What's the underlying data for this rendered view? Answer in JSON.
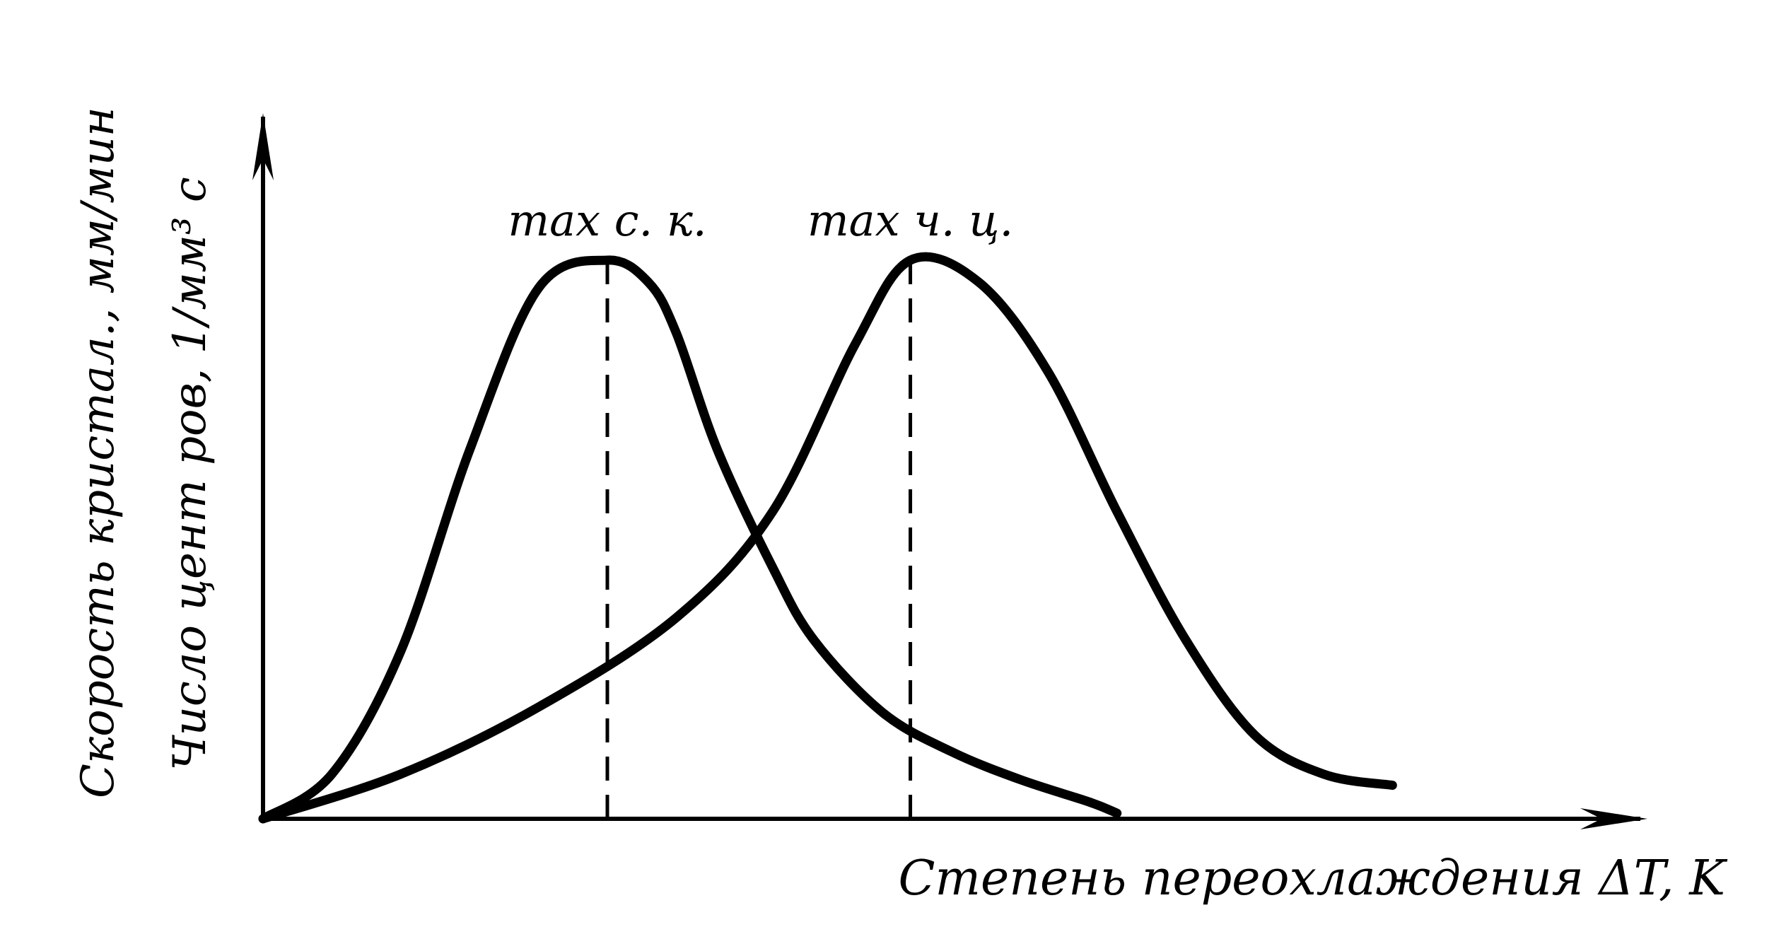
{
  "chart_data": {
    "type": "line",
    "xlabel": "Степень переохлаждения  ΔT, K",
    "ylabels": [
      "Скорость кристал., мм/мин",
      "Число цент ров, 1/мм³ с"
    ],
    "xlim": [
      0,
      100
    ],
    "ylim": [
      0,
      100
    ],
    "grid": false,
    "series": [
      {
        "x": [
          0,
          5,
          10,
          15,
          20,
          25,
          28,
          30,
          33,
          37,
          40,
          45,
          50,
          55,
          60,
          62
        ],
        "y": [
          0,
          8,
          30,
          66,
          95,
          100,
          96,
          87,
          66,
          45,
          32,
          19,
          12,
          7,
          3,
          1
        ],
        "style": "solid"
      },
      {
        "x": [
          0,
          10,
          20,
          30,
          37,
          43,
          47,
          52,
          57,
          62,
          67,
          72,
          77,
          82
        ],
        "y": [
          0,
          8,
          20,
          36,
          55,
          85,
          100,
          96,
          80,
          55,
          32,
          15,
          8,
          6
        ],
        "style": "solid"
      }
    ],
    "annotations": [
      {
        "text": "max с. к.",
        "x": 25
      },
      {
        "text": "max ч. ц.",
        "x": 47
      }
    ]
  }
}
